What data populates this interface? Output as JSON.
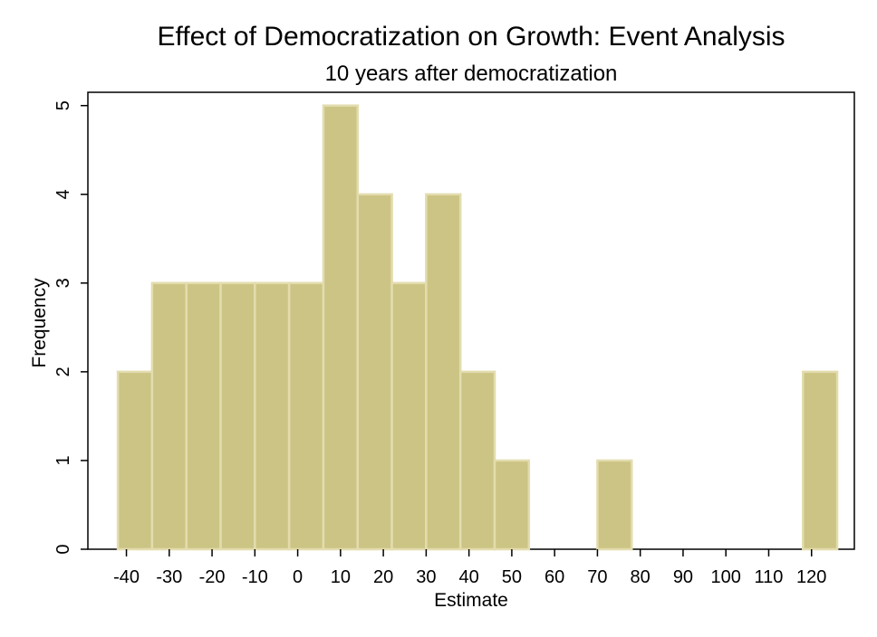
{
  "chart_data": {
    "type": "bar",
    "title": "Effect of Democratization on Growth: Event Analysis",
    "subtitle": "10 years after democratization",
    "xlabel": "Estimate",
    "ylabel": "Frequency",
    "bin_width": 8,
    "bins": [
      {
        "start": -42,
        "count": 2
      },
      {
        "start": -34,
        "count": 3
      },
      {
        "start": -26,
        "count": 3
      },
      {
        "start": -18,
        "count": 3
      },
      {
        "start": -10,
        "count": 3
      },
      {
        "start": -2,
        "count": 3
      },
      {
        "start": 6,
        "count": 5
      },
      {
        "start": 14,
        "count": 4
      },
      {
        "start": 22,
        "count": 3
      },
      {
        "start": 30,
        "count": 4
      },
      {
        "start": 38,
        "count": 2
      },
      {
        "start": 46,
        "count": 1
      },
      {
        "start": 70,
        "count": 1
      },
      {
        "start": 118,
        "count": 2
      }
    ],
    "xticks": [
      -40,
      -30,
      -20,
      -10,
      0,
      10,
      20,
      30,
      40,
      50,
      60,
      70,
      80,
      90,
      100,
      110,
      120
    ],
    "yticks": [
      0,
      1,
      2,
      3,
      4,
      5
    ],
    "xlim": [
      -49,
      130
    ],
    "ylim": [
      0,
      5.15
    ],
    "grid": false,
    "colors": {
      "bar_fill": "#ccc484",
      "bar_edge": "#e3dcae",
      "axis": "#000000"
    }
  }
}
